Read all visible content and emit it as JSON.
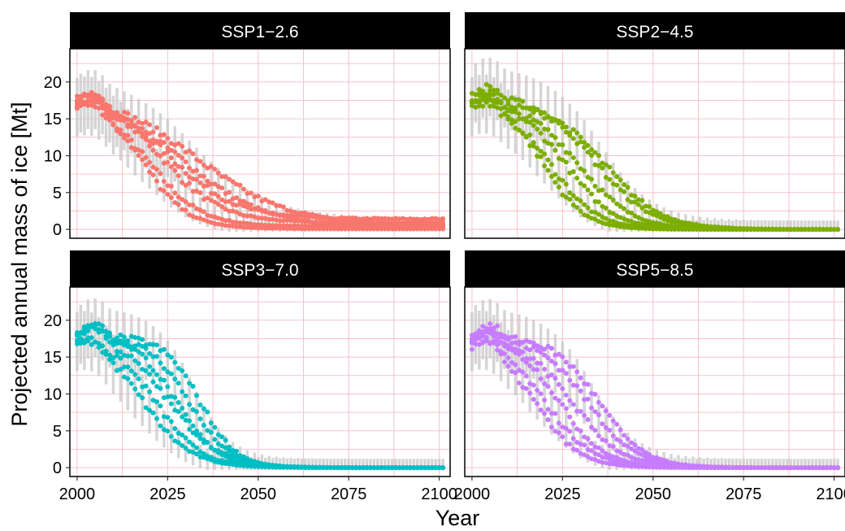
{
  "figure": {
    "xlabel": "Year",
    "ylabel": "Projected annual mass of ice [Mt]"
  },
  "colors": {
    "strip_bg": "#000000",
    "strip_text": "#ffffff",
    "panel_border": "#000000",
    "grid": "#f5c2cb",
    "error_bar": "#c8c8c8",
    "axis_text": "#000000"
  },
  "chart_data": [
    {
      "type": "scatter",
      "panel_title": "SSP1−2.6",
      "color": "#f8766d",
      "xlim": [
        1998,
        2103
      ],
      "ylim": [
        -1.2,
        24.5
      ],
      "xticks": [
        2000,
        2025,
        2050,
        2075,
        2100
      ],
      "xtick_labels": [
        "2000",
        "2025",
        "2050",
        "2075",
        "2100"
      ],
      "yticks": [
        0,
        5,
        10,
        15,
        20
      ],
      "ytick_labels": [
        "0",
        "5",
        "10",
        "15",
        "20"
      ],
      "x_range": [
        2000,
        2101
      ],
      "start_value": 18.3,
      "end_values": [
        1.4,
        0.9,
        0.6,
        0.3,
        0.15,
        0.05
      ],
      "peak_year": 2003,
      "peak_value": 19.6,
      "half_year": 2025,
      "approx_members": [
        {
          "center_year": 2020,
          "k": 0.14,
          "floor": 0.4
        },
        {
          "center_year": 2023,
          "k": 0.12,
          "floor": 0.9
        },
        {
          "center_year": 2026,
          "k": 0.11,
          "floor": 1.4
        },
        {
          "center_year": 2030,
          "k": 0.09,
          "floor": 0.3
        },
        {
          "center_year": 2033,
          "k": 0.08,
          "floor": 0.6
        },
        {
          "center_year": 2018,
          "k": 0.16,
          "floor": 0.1
        }
      ],
      "error_bar_halfwidth": 3.0
    },
    {
      "type": "scatter",
      "panel_title": "SSP2−4.5",
      "color": "#7cae00",
      "xlim": [
        1998,
        2103
      ],
      "ylim": [
        -1.2,
        24.5
      ],
      "xticks": [
        2000,
        2025,
        2050,
        2075,
        2100
      ],
      "xtick_labels": [
        "2000",
        "2025",
        "2050",
        "2075",
        "2100"
      ],
      "yticks": [
        0,
        5,
        10,
        15,
        20
      ],
      "ytick_labels": [
        "0",
        "5",
        "10",
        "15",
        "20"
      ],
      "x_range": [
        2000,
        2101
      ],
      "start_value": 17.8,
      "end_values": [
        0.0
      ],
      "peak_year": 2003,
      "peak_value": 19.0,
      "approx_members": [
        {
          "center_year": 2022,
          "k": 0.16,
          "floor": 0.0
        },
        {
          "center_year": 2026,
          "k": 0.15,
          "floor": 0.0
        },
        {
          "center_year": 2030,
          "k": 0.14,
          "floor": 0.0
        },
        {
          "center_year": 2034,
          "k": 0.13,
          "floor": 0.0
        },
        {
          "center_year": 2037,
          "k": 0.13,
          "floor": 0.0
        },
        {
          "center_year": 2020,
          "k": 0.18,
          "floor": 0.0
        }
      ],
      "error_bar_halfwidth": 3.0
    },
    {
      "type": "scatter",
      "panel_title": "SSP3−7.0",
      "color": "#00bfc4",
      "xlim": [
        1998,
        2103
      ],
      "ylim": [
        -1.2,
        24.5
      ],
      "xticks": [
        2000,
        2025,
        2050,
        2075,
        2100
      ],
      "xtick_labels": [
        "2000",
        "2025",
        "2050",
        "2075",
        "2100"
      ],
      "yticks": [
        0,
        5,
        10,
        15,
        20
      ],
      "ytick_labels": [
        "0",
        "5",
        "10",
        "15",
        "20"
      ],
      "x_range": [
        2000,
        2101
      ],
      "start_value": 17.8,
      "end_values": [
        0.0
      ],
      "peak_year": 2003,
      "peak_value": 19.7,
      "approx_members": [
        {
          "center_year": 2018,
          "k": 0.15,
          "floor": 0.0
        },
        {
          "center_year": 2022,
          "k": 0.16,
          "floor": 0.0
        },
        {
          "center_year": 2027,
          "k": 0.17,
          "floor": 0.0
        },
        {
          "center_year": 2031,
          "k": 0.18,
          "floor": 0.0
        },
        {
          "center_year": 2034,
          "k": 0.2,
          "floor": 0.0
        },
        {
          "center_year": 2025,
          "k": 0.14,
          "floor": 0.0
        }
      ],
      "error_bar_halfwidth": 3.0
    },
    {
      "type": "scatter",
      "panel_title": "SSP5−8.5",
      "color": "#c77cff",
      "xlim": [
        1998,
        2103
      ],
      "ylim": [
        -1.2,
        24.5
      ],
      "xticks": [
        2000,
        2025,
        2050,
        2075,
        2100
      ],
      "xtick_labels": [
        "2000",
        "2025",
        "2050",
        "2075",
        "2100"
      ],
      "yticks": [
        0,
        5,
        10,
        15,
        20
      ],
      "ytick_labels": [
        "0",
        "5",
        "10",
        "15",
        "20"
      ],
      "x_range": [
        2000,
        2101
      ],
      "start_value": 17.6,
      "end_values": [
        0.0
      ],
      "peak_year": 2003,
      "peak_value": 19.6,
      "approx_members": [
        {
          "center_year": 2020,
          "k": 0.15,
          "floor": 0.0
        },
        {
          "center_year": 2024,
          "k": 0.16,
          "floor": 0.0
        },
        {
          "center_year": 2028,
          "k": 0.15,
          "floor": 0.0
        },
        {
          "center_year": 2032,
          "k": 0.15,
          "floor": 0.0
        },
        {
          "center_year": 2035,
          "k": 0.16,
          "floor": 0.0
        },
        {
          "center_year": 2018,
          "k": 0.17,
          "floor": 0.0
        }
      ],
      "error_bar_halfwidth": 3.0
    }
  ]
}
